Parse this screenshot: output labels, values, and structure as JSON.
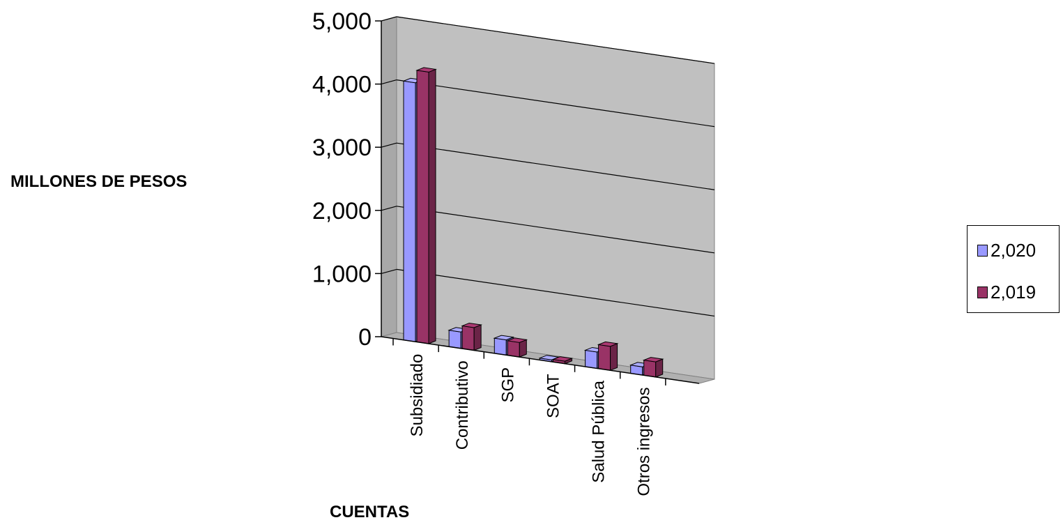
{
  "chart_data": {
    "type": "bar",
    "title": "",
    "xlabel": "CUENTAS",
    "ylabel": "MILLONES DE PESOS",
    "categories": [
      "Subsidiado",
      "Contributivo",
      "SGP",
      "SOAT",
      "Salud Pública",
      "Otros ingresos"
    ],
    "series": [
      {
        "name": "2,020",
        "values": [
          4100,
          260,
          240,
          30,
          260,
          130
        ]
      },
      {
        "name": "2,019",
        "values": [
          4300,
          360,
          230,
          40,
          380,
          240
        ]
      }
    ],
    "ylim": [
      0,
      5000
    ],
    "yticks": [
      0,
      1000,
      2000,
      3000,
      4000,
      5000
    ],
    "ytick_labels": [
      "0",
      "1,000",
      "2,000",
      "3,000",
      "4,000",
      "5,000"
    ],
    "grid": true,
    "legend_position": "right",
    "style": "3d-clustered-column",
    "colors": {
      "2,020": "#9999ff",
      "2,019": "#993366",
      "walls": "#c0c0c0",
      "floor": "#b0b0b0"
    }
  }
}
